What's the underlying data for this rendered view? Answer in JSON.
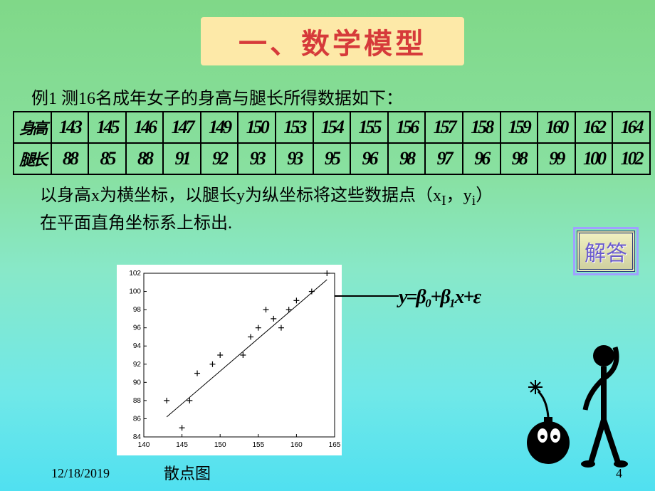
{
  "title": "一、数学模型",
  "example": "例1 测16名成年女子的身高与腿长所得数据如下：",
  "table": {
    "row1_header": "身高",
    "row2_header": "腿长",
    "heights": [
      "143",
      "145",
      "146",
      "147",
      "149",
      "150",
      "153",
      "154",
      "155",
      "156",
      "157",
      "158",
      "159",
      "160",
      "162",
      "164"
    ],
    "legs": [
      "88",
      "85",
      "88",
      "91",
      "92",
      "93",
      "93",
      "95",
      "96",
      "98",
      "97",
      "96",
      "98",
      "99",
      "100",
      "102"
    ]
  },
  "description_line1": "以身高x为横坐标，以腿长y为纵坐标将这些数据点（x",
  "description_sub1": "I",
  "description_mid": "，y",
  "description_sub2": "i",
  "description_end": "）",
  "description_line2": "在平面直角坐标系上标出.",
  "answer_button": "解答",
  "chart": {
    "caption": "散点图",
    "xlim": [
      140,
      165
    ],
    "xtick_step": 5,
    "ylim": [
      84,
      102
    ],
    "ytick_step": 2,
    "background_color": "#ffffff",
    "axis_color": "#000000",
    "tick_fontsize": 10,
    "marker": "+",
    "marker_color": "#000000",
    "marker_size": 8,
    "line_color": "#000000",
    "line_width": 1,
    "points_x": [
      143,
      145,
      146,
      147,
      149,
      150,
      153,
      154,
      155,
      156,
      157,
      158,
      159,
      160,
      162,
      164
    ],
    "points_y": [
      88,
      85,
      88,
      91,
      92,
      93,
      93,
      95,
      96,
      98,
      97,
      96,
      98,
      99,
      100,
      102
    ],
    "fit_line": {
      "x0": 143,
      "y0": 86.2,
      "x1": 164,
      "y1": 101.3
    }
  },
  "equation": "y=β₀+β₁x+ε",
  "date": "12/18/2019",
  "page": "4",
  "clipart": {
    "description": "stick-figure scratching head next to a cartoon bomb with lit fuse",
    "stroke": "#000000",
    "fill": "#000000"
  }
}
